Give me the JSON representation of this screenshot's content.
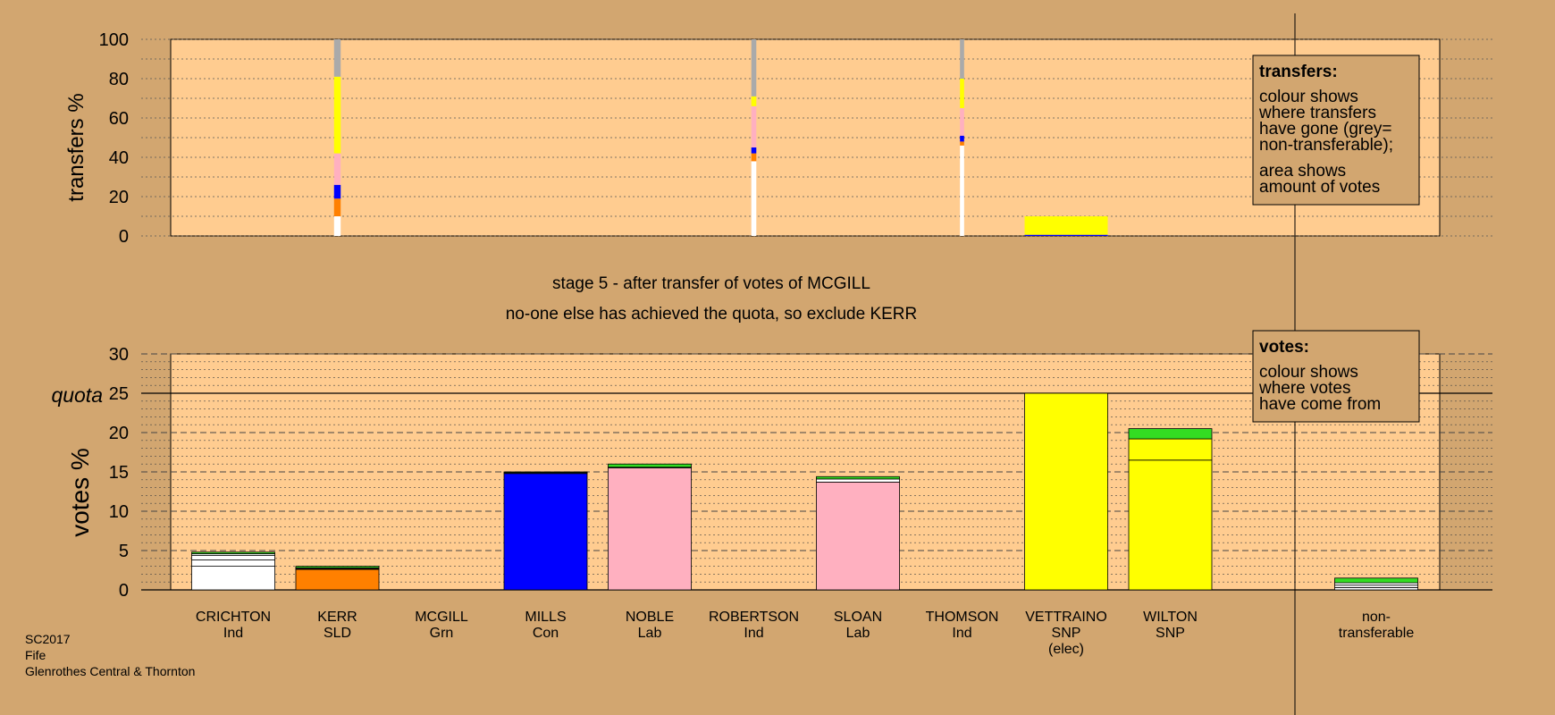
{
  "colors": {
    "background": "#D2A670",
    "plot_area": "#FFCC90",
    "nontransferable": "#AAAAAA",
    "Ind": "#FFFFFF",
    "SLD": "#FF8000",
    "Grn": "#33DD22",
    "Con": "#0000FF",
    "Lab": "#FFB0C0",
    "SNP": "#FFFF00"
  },
  "titles": {
    "stage": "stage 5 - after transfer of votes of MCGILL",
    "note": "no-one else has achieved the quota, so exclude KERR"
  },
  "legend_transfers": {
    "heading": "transfers:",
    "lines1": [
      "colour shows",
      "where transfers",
      "have gone (grey=",
      "non-transferable);"
    ],
    "lines2": [
      "area shows",
      "amount of votes"
    ]
  },
  "legend_votes": {
    "heading": "votes:",
    "lines": [
      "colour shows",
      "where votes",
      "have come from"
    ]
  },
  "footer": {
    "line1": "SC2017",
    "line2": "Fife",
    "line3": "Glenrothes Central & Thornton"
  },
  "chart_data": [
    {
      "type": "bar",
      "title": "transfers",
      "ylabel": "transfers %",
      "ylim": [
        0,
        100
      ],
      "yticks": [
        0,
        20,
        40,
        60,
        80,
        100
      ],
      "grid": true,
      "bars": [
        {
          "candidate": "KERR",
          "width_pct": 8,
          "segments": [
            {
              "party": "Ind",
              "value": 10
            },
            {
              "party": "SLD",
              "value": 9
            },
            {
              "party": "Con",
              "value": 7
            },
            {
              "party": "Lab",
              "value": 16
            },
            {
              "party": "SNP",
              "value": 39
            },
            {
              "party": "nontransferable",
              "value": 19
            }
          ]
        },
        {
          "candidate": "ROBERTSON",
          "width_pct": 6,
          "segments": [
            {
              "party": "Ind",
              "value": 38
            },
            {
              "party": "SLD",
              "value": 4
            },
            {
              "party": "Con",
              "value": 3
            },
            {
              "party": "Lab",
              "value": 21
            },
            {
              "party": "SNP",
              "value": 5
            },
            {
              "party": "nontransferable",
              "value": 29
            }
          ]
        },
        {
          "candidate": "THOMSON",
          "width_pct": 5,
          "segments": [
            {
              "party": "Ind",
              "value": 46
            },
            {
              "party": "SLD",
              "value": 2
            },
            {
              "party": "Con",
              "value": 3
            },
            {
              "party": "Lab",
              "value": 14
            },
            {
              "party": "SNP",
              "value": 15
            },
            {
              "party": "nontransferable",
              "value": 20
            }
          ]
        },
        {
          "candidate": "VETTRAINO",
          "width_pct": 100,
          "segments": [
            {
              "party": "Con",
              "value": 0.6
            },
            {
              "party": "SNP",
              "value": 9.4
            }
          ]
        }
      ]
    },
    {
      "type": "bar",
      "title": "votes",
      "ylabel": "votes %",
      "ylim": [
        0,
        30
      ],
      "yticks": [
        0,
        5,
        10,
        15,
        20,
        25,
        30
      ],
      "quota": 25,
      "quota_label": "quota",
      "grid": true,
      "candidates": [
        {
          "name": "CRICHTON",
          "party": "Ind",
          "segments": [
            {
              "party": "Ind",
              "value": 3.0
            },
            {
              "party": "Ind",
              "value": 0.8
            },
            {
              "party": "Ind",
              "value": 0.6
            },
            {
              "party": "Ind",
              "value": 0.2
            },
            {
              "party": "Grn",
              "value": 0.2
            }
          ]
        },
        {
          "name": "KERR",
          "party": "SLD",
          "segments": [
            {
              "party": "SLD",
              "value": 2.6
            },
            {
              "party": "Lab",
              "value": 0.1
            },
            {
              "party": "Ind",
              "value": 0.1
            },
            {
              "party": "Grn",
              "value": 0.2
            }
          ]
        },
        {
          "name": "MCGILL",
          "party": "Grn",
          "segments": []
        },
        {
          "name": "MILLS",
          "party": "Con",
          "segments": [
            {
              "party": "Con",
              "value": 14.8
            },
            {
              "party": "Ind",
              "value": 0.1
            },
            {
              "party": "Grn",
              "value": 0.1
            }
          ]
        },
        {
          "name": "NOBLE",
          "party": "Lab",
          "segments": [
            {
              "party": "Lab",
              "value": 15.5
            },
            {
              "party": "Ind",
              "value": 0.1
            },
            {
              "party": "Grn",
              "value": 0.4
            }
          ]
        },
        {
          "name": "ROBERTSON",
          "party": "Ind",
          "segments": []
        },
        {
          "name": "SLOAN",
          "party": "Lab",
          "segments": [
            {
              "party": "Lab",
              "value": 13.7
            },
            {
              "party": "Ind",
              "value": 0.4
            },
            {
              "party": "Grn",
              "value": 0.3
            }
          ]
        },
        {
          "name": "THOMSON",
          "party": "Ind",
          "segments": []
        },
        {
          "name": "VETTRAINO",
          "party": "SNP",
          "note": "(elec)",
          "segments": [
            {
              "party": "SNP",
              "value": 25.0
            }
          ]
        },
        {
          "name": "WILTON",
          "party": "SNP",
          "segments": [
            {
              "party": "SNP",
              "value": 16.5
            },
            {
              "party": "SNP",
              "value": 2.7
            },
            {
              "party": "Grn",
              "value": 1.3
            }
          ]
        },
        {
          "name": "non-",
          "party": "transferable",
          "segments": [
            {
              "party": "Ind",
              "value": 0.3
            },
            {
              "party": "Ind",
              "value": 0.3
            },
            {
              "party": "Ind",
              "value": 0.3
            },
            {
              "party": "Grn",
              "value": 0.6
            }
          ]
        }
      ]
    }
  ]
}
